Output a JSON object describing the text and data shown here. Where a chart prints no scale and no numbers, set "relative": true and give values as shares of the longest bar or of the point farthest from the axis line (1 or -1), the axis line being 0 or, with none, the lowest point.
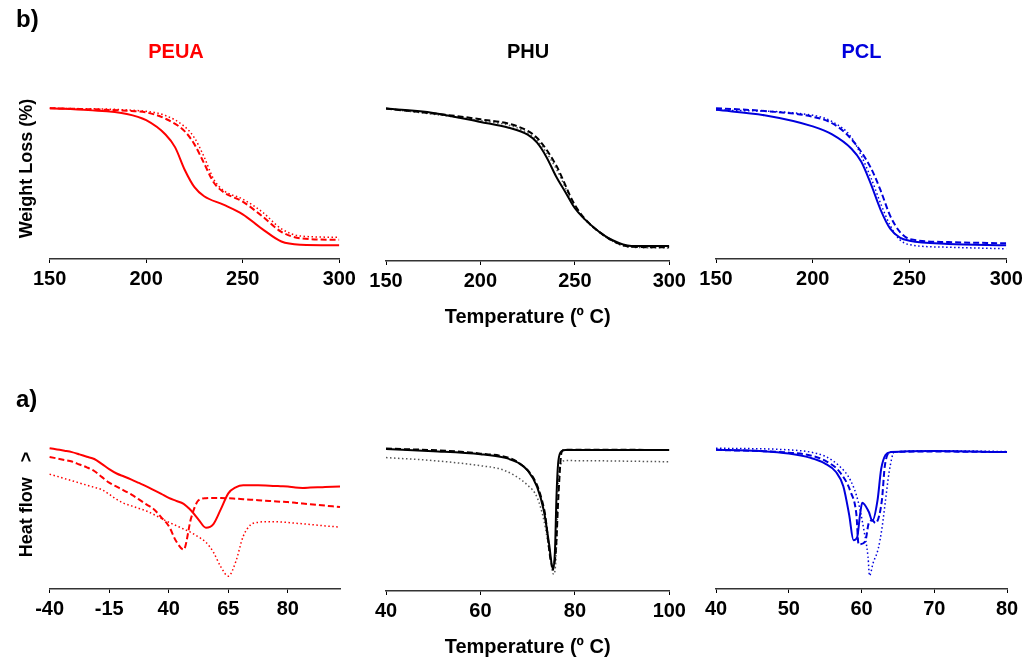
{
  "chart_data": [
    {
      "type": "line",
      "title": "PEUA",
      "ylabel": "Weight Loss (%)",
      "annotations": [
        "b)"
      ],
      "relative": true,
      "xlim": [
        150,
        300
      ],
      "xticks": [
        150,
        200,
        250,
        300
      ],
      "series": [
        {
          "color": "#ff0000",
          "line_style": "solid",
          "x": [
            150,
            170,
            190,
            200,
            210,
            215,
            220,
            225,
            230,
            240,
            250,
            260,
            270,
            280,
            300
          ],
          "values": [
            1.0,
            0.987,
            0.962,
            0.92,
            0.825,
            0.74,
            0.59,
            0.476,
            0.416,
            0.36,
            0.296,
            0.2,
            0.116,
            0.095,
            0.091
          ]
        },
        {
          "color": "#ff0000",
          "line_style": "dashed",
          "x": [
            150,
            190,
            200,
            210,
            220,
            225,
            230,
            235,
            240,
            250,
            260,
            270,
            280,
            300
          ],
          "values": [
            1.0,
            0.983,
            0.972,
            0.93,
            0.846,
            0.76,
            0.634,
            0.507,
            0.444,
            0.38,
            0.285,
            0.18,
            0.137,
            0.127
          ]
        },
        {
          "color": "#ff0000",
          "line_style": "dotted",
          "x": [
            150,
            200,
            210,
            220,
            225,
            230,
            235,
            240,
            250,
            260,
            270,
            280,
            300
          ],
          "values": [
            1.0,
            0.979,
            0.951,
            0.877,
            0.803,
            0.677,
            0.528,
            0.455,
            0.397,
            0.313,
            0.2,
            0.152,
            0.144
          ]
        }
      ]
    },
    {
      "type": "line",
      "title": "PHU",
      "xlabel": "Temperature (º C)",
      "relative": true,
      "xlim": [
        150,
        300
      ],
      "xticks": [
        150,
        200,
        250,
        300
      ],
      "series": [
        {
          "color": "#000000",
          "line_style": "solid",
          "x": [
            150,
            175,
            200,
            215,
            225,
            230,
            235,
            240,
            245,
            250,
            260,
            270,
            280,
            300
          ],
          "values": [
            1.0,
            0.971,
            0.912,
            0.874,
            0.828,
            0.776,
            0.681,
            0.556,
            0.451,
            0.346,
            0.22,
            0.136,
            0.099,
            0.099
          ]
        },
        {
          "color": "#000000",
          "line_style": "dashed",
          "x": [
            150,
            200,
            220,
            230,
            240,
            250,
            260,
            280,
            300
          ],
          "values": [
            1.0,
            0.929,
            0.881,
            0.807,
            0.629,
            0.367,
            0.22,
            0.094,
            0.09
          ]
        },
        {
          "color": "#555555",
          "line_style": "dotted",
          "x": [
            150,
            200,
            220,
            230,
            240,
            250,
            260,
            280,
            300
          ],
          "values": [
            1.0,
            0.92,
            0.87,
            0.79,
            0.608,
            0.356,
            0.216,
            0.09,
            0.086
          ]
        }
      ]
    },
    {
      "type": "line",
      "title": "PCL",
      "relative": true,
      "xlim": [
        150,
        300
      ],
      "xticks": [
        150,
        200,
        250,
        300
      ],
      "series": [
        {
          "color": "#0000dd",
          "line_style": "solid",
          "x": [
            150,
            175,
            200,
            210,
            220,
            225,
            230,
            235,
            240,
            245,
            250,
            270,
            300
          ],
          "values": [
            0.989,
            0.953,
            0.879,
            0.826,
            0.731,
            0.646,
            0.498,
            0.328,
            0.201,
            0.142,
            0.121,
            0.1,
            0.091
          ]
        },
        {
          "color": "#0000dd",
          "line_style": "dashed",
          "x": [
            150,
            175,
            200,
            210,
            220,
            230,
            235,
            240,
            245,
            250,
            270,
            300
          ],
          "values": [
            1.0,
            0.981,
            0.943,
            0.9,
            0.794,
            0.604,
            0.456,
            0.286,
            0.18,
            0.133,
            0.112,
            0.104
          ]
        },
        {
          "color": "#0000dd",
          "line_style": "dotted",
          "x": [
            150,
            200,
            210,
            220,
            230,
            235,
            240,
            245,
            250,
            270,
            300
          ],
          "values": [
            0.989,
            0.953,
            0.911,
            0.805,
            0.54,
            0.37,
            0.222,
            0.127,
            0.095,
            0.078,
            0.068
          ]
        }
      ]
    },
    {
      "type": "line",
      "ylabel": "Heat flow   >",
      "annotations": [
        "a)"
      ],
      "relative": true,
      "categories": [
        "-40",
        null,
        null,
        null,
        null,
        null,
        null,
        null,
        "-15",
        null,
        null,
        null,
        null,
        null,
        null,
        null,
        "40",
        null,
        null,
        null,
        null,
        null,
        null,
        null,
        "65",
        null,
        null,
        null,
        null,
        null,
        null,
        null,
        "80",
        null,
        null,
        null,
        null,
        null,
        null,
        null
      ],
      "series": [
        {
          "color": "#ff0000",
          "line_style": "solid",
          "values": [
            1.0,
            0.991,
            0.982,
            0.972,
            0.956,
            0.939,
            0.923,
            0.889,
            0.851,
            0.82,
            0.799,
            0.777,
            0.753,
            0.729,
            0.702,
            0.675,
            0.647,
            0.626,
            0.605,
            0.557,
            0.493,
            0.435,
            0.461,
            0.567,
            0.679,
            0.722,
            0.736,
            0.736,
            0.736,
            0.735,
            0.732,
            0.73,
            0.728,
            0.72,
            0.718,
            0.72,
            0.722,
            0.724,
            0.726,
            0.728
          ]
        },
        {
          "color": "#ff0000",
          "line_style": "dashed",
          "values": [
            0.938,
            0.927,
            0.916,
            0.905,
            0.884,
            0.864,
            0.838,
            0.796,
            0.755,
            0.727,
            0.699,
            0.67,
            0.636,
            0.601,
            0.566,
            0.509,
            0.448,
            0.339,
            0.28,
            0.503,
            0.63,
            0.645,
            0.647,
            0.646,
            0.644,
            0.641,
            0.638,
            0.634,
            0.631,
            0.627,
            0.624,
            0.62,
            0.617,
            0.612,
            0.607,
            0.602,
            0.597,
            0.592,
            0.587,
            0.582
          ]
        },
        {
          "color": "#ff0000",
          "line_style": "dotted",
          "values": [
            0.815,
            0.8,
            0.784,
            0.769,
            0.753,
            0.737,
            0.722,
            0.706,
            0.673,
            0.636,
            0.608,
            0.59,
            0.572,
            0.554,
            0.529,
            0.501,
            0.474,
            0.45,
            0.426,
            0.401,
            0.37,
            0.331,
            0.261,
            0.157,
            0.091,
            0.194,
            0.374,
            0.456,
            0.473,
            0.478,
            0.478,
            0.476,
            0.472,
            0.467,
            0.463,
            0.458,
            0.453,
            0.448,
            0.444,
            0.439
          ]
        }
      ]
    },
    {
      "type": "line",
      "xlabel": "Temperature (º C)",
      "relative": true,
      "xlim": [
        40,
        100
      ],
      "xticks": [
        40,
        60,
        80,
        100
      ],
      "series": [
        {
          "color": "#000000",
          "line_style": "solid",
          "x": [
            40,
            50,
            60,
            65,
            68,
            70,
            72,
            73.5,
            74.5,
            75.4,
            75.8,
            76.1,
            76.5,
            77.2,
            78,
            100
          ],
          "values": [
            0.996,
            0.981,
            0.96,
            0.936,
            0.9,
            0.847,
            0.731,
            0.551,
            0.339,
            0.148,
            0.297,
            0.657,
            0.911,
            0.981,
            0.989,
            0.989
          ]
        },
        {
          "color": "#000000",
          "line_style": "dashed",
          "x": [
            40,
            60,
            70,
            73.5,
            75.3,
            76,
            76.5,
            77.2,
            78,
            85,
            100
          ],
          "values": [
            1.0,
            0.964,
            0.847,
            0.572,
            0.169,
            0.297,
            0.657,
            0.975,
            0.992,
            0.992,
            0.989
          ]
        },
        {
          "color": "#555555",
          "line_style": "dotted",
          "x": [
            40,
            50,
            60,
            65,
            70,
            72,
            73.5,
            74.5,
            75.5,
            76,
            76.5,
            77,
            78,
            100
          ],
          "values": [
            0.936,
            0.915,
            0.879,
            0.847,
            0.742,
            0.657,
            0.487,
            0.297,
            0.117,
            0.233,
            0.763,
            0.89,
            0.915,
            0.907
          ]
        }
      ]
    },
    {
      "type": "line",
      "relative": true,
      "xlim": [
        40,
        80
      ],
      "xticks": [
        40,
        50,
        60,
        70,
        80
      ],
      "series": [
        {
          "color": "#0000dd",
          "line_style": "solid",
          "x": [
            40,
            45,
            50,
            53,
            55,
            56.5,
            57.5,
            58.3,
            58.9,
            59.4,
            59.8,
            60.1,
            61,
            61.5,
            62.2,
            62.7,
            63.3,
            64,
            70,
            80
          ],
          "values": [
            0.988,
            0.982,
            0.962,
            0.931,
            0.891,
            0.831,
            0.73,
            0.528,
            0.347,
            0.367,
            0.528,
            0.613,
            0.548,
            0.484,
            0.629,
            0.851,
            0.952,
            0.972,
            0.98,
            0.972
          ]
        },
        {
          "color": "#0000dd",
          "line_style": "dashed",
          "x": [
            40,
            50,
            53,
            55,
            57,
            58.5,
            59.3,
            59.6,
            60.5,
            61,
            61.5,
            61.9,
            62.8,
            63.2,
            64,
            70,
            80
          ],
          "values": [
            0.988,
            0.968,
            0.948,
            0.911,
            0.831,
            0.69,
            0.528,
            0.317,
            0.337,
            0.468,
            0.488,
            0.468,
            0.629,
            0.871,
            0.972,
            0.976,
            0.972
          ]
        },
        {
          "color": "#0000dd",
          "line_style": "dotted",
          "x": [
            40,
            50,
            53,
            55,
            57,
            58.5,
            59.5,
            60.3,
            60.9,
            61.1,
            61.6,
            62.3,
            62.8,
            63.3,
            63.8,
            64.5,
            70,
            80
          ],
          "values": [
            1.0,
            0.988,
            0.972,
            0.942,
            0.871,
            0.77,
            0.629,
            0.427,
            0.226,
            0.095,
            0.185,
            0.286,
            0.427,
            0.629,
            0.831,
            0.972,
            0.982,
            0.976
          ]
        }
      ]
    }
  ]
}
